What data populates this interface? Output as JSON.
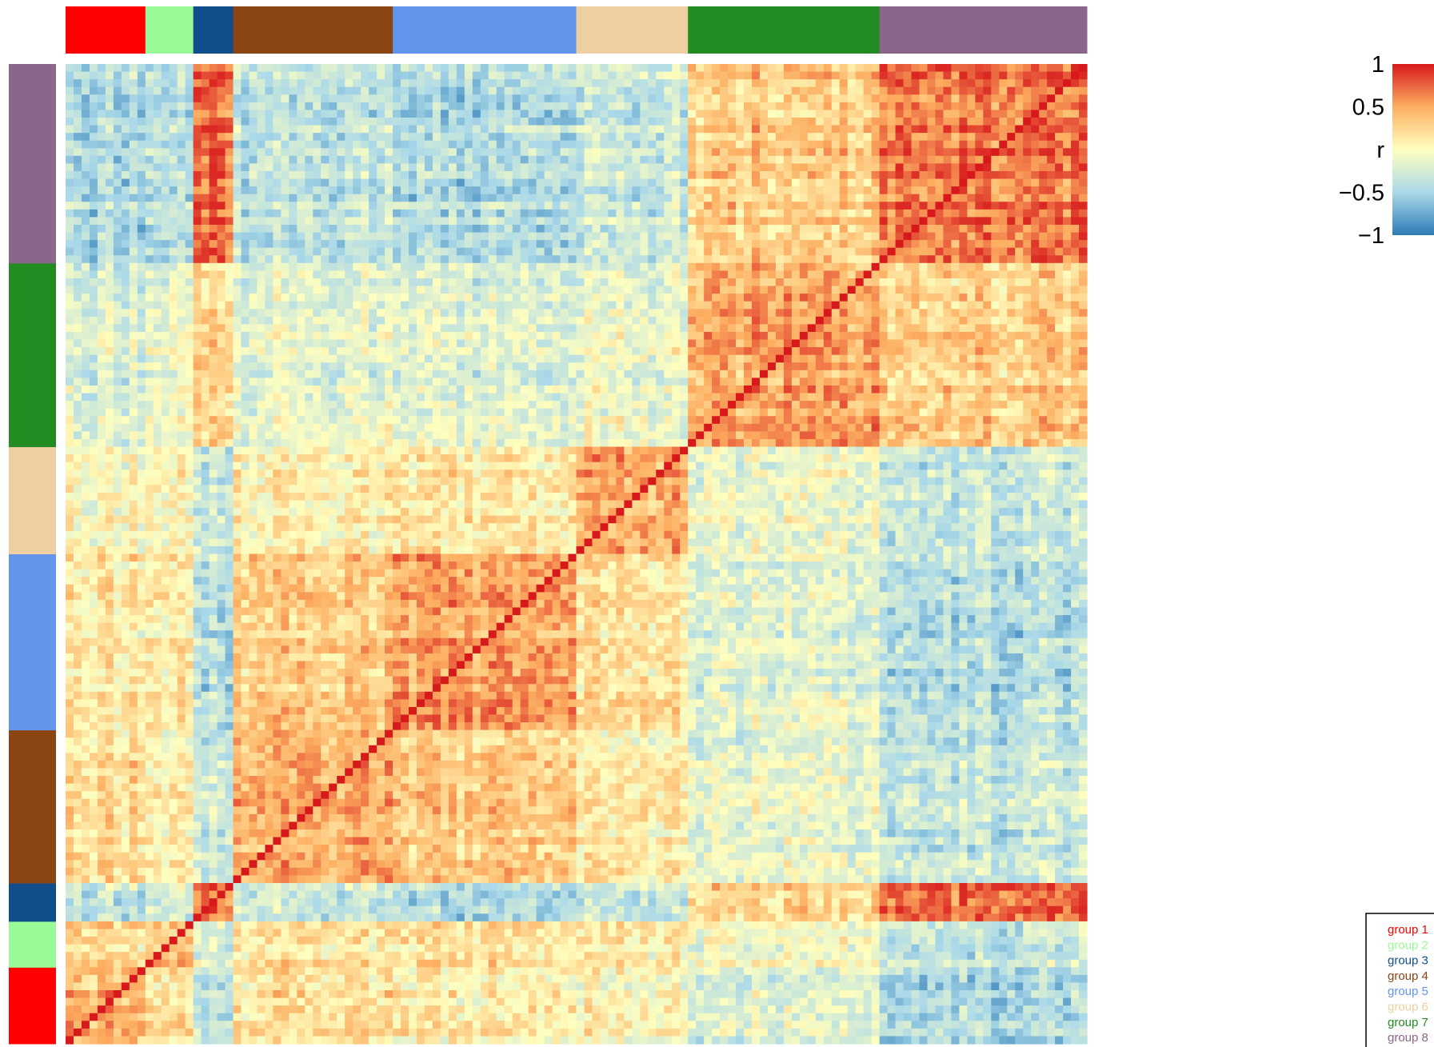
{
  "chart_data": {
    "type": "heatmap",
    "title": "",
    "xlabel": "",
    "ylabel": "",
    "matrix_size": 128,
    "groups": [
      {
        "name": "group 1",
        "size": 10,
        "color": "#FF0000"
      },
      {
        "name": "group 2",
        "size": 6,
        "color": "#98FB98"
      },
      {
        "name": "group 3",
        "size": 5,
        "color": "#104E8B"
      },
      {
        "name": "group 4",
        "size": 20,
        "color": "#8B4513"
      },
      {
        "name": "group 5",
        "size": 23,
        "color": "#6495ED"
      },
      {
        "name": "group 6",
        "size": 14,
        "color": "#EECFA1"
      },
      {
        "name": "group 7",
        "size": 24,
        "color": "#228B22"
      },
      {
        "name": "group 8",
        "size": 26,
        "color": "#8B668B"
      }
    ],
    "block_correlation": [
      [
        0.45,
        0.25,
        -0.35,
        0.2,
        0.1,
        0.05,
        -0.2,
        -0.45
      ],
      [
        0.25,
        0.4,
        -0.2,
        0.15,
        0.15,
        0.1,
        -0.05,
        -0.35
      ],
      [
        -0.35,
        -0.2,
        0.7,
        -0.3,
        -0.45,
        -0.3,
        0.25,
        0.75
      ],
      [
        0.2,
        0.15,
        -0.3,
        0.45,
        0.3,
        0.1,
        -0.15,
        -0.35
      ],
      [
        0.1,
        0.15,
        -0.45,
        0.3,
        0.5,
        0.15,
        -0.2,
        -0.45
      ],
      [
        0.05,
        0.1,
        -0.3,
        0.1,
        0.15,
        0.5,
        -0.1,
        -0.3
      ],
      [
        -0.2,
        -0.05,
        0.25,
        -0.15,
        -0.2,
        -0.1,
        0.5,
        0.3
      ],
      [
        -0.45,
        -0.35,
        0.75,
        -0.35,
        -0.45,
        -0.3,
        0.3,
        0.7
      ]
    ],
    "diagonal_value": 1,
    "colorbar": {
      "title": "r",
      "min": -1,
      "max": 1,
      "ticks": [
        {
          "value": 1,
          "label": "1"
        },
        {
          "value": 0.5,
          "label": "0.5"
        },
        {
          "value": 0,
          "label": "r"
        },
        {
          "value": -0.5,
          "label": "−0.5"
        },
        {
          "value": -1,
          "label": "−1"
        }
      ],
      "colors": [
        "#2C7BB6",
        "#ABD9E9",
        "#FFFFBF",
        "#FDAE61",
        "#D7191C"
      ]
    },
    "legend": {
      "position": "bottom-right",
      "entries": [
        "group 1",
        "group 2",
        "group 3",
        "group 4",
        "group 5",
        "group 6",
        "group 7",
        "group 8"
      ]
    }
  }
}
